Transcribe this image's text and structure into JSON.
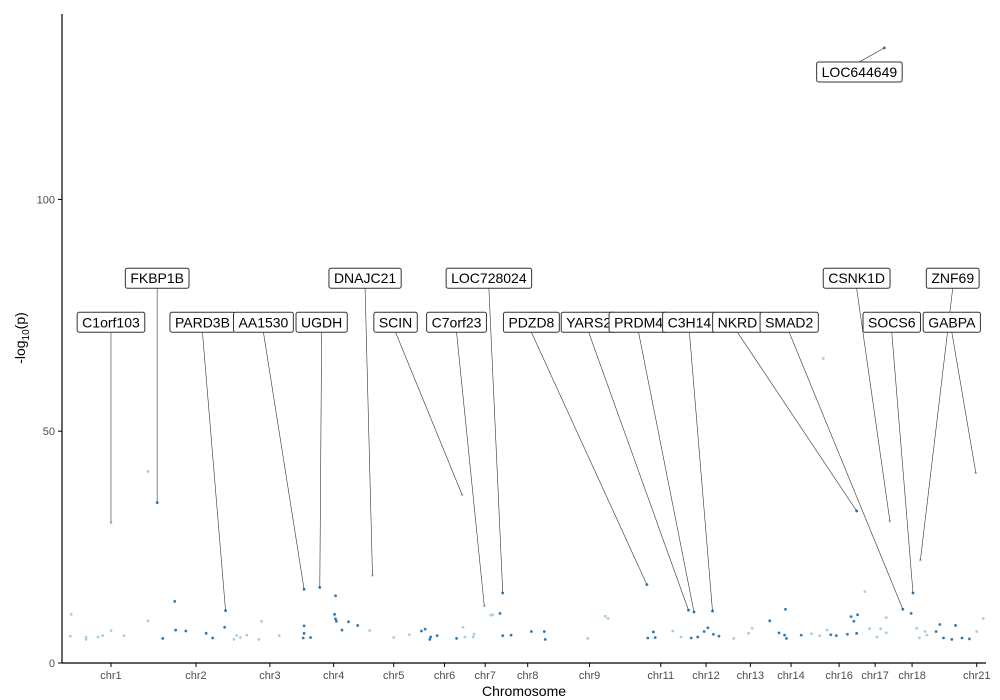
{
  "chart_data": {
    "type": "scatter",
    "title": "",
    "xlabel": "Chromosome",
    "ylabel": "-log10(p)",
    "ylim": [
      0,
      140
    ],
    "xlim": [
      0,
      100
    ],
    "y_ticks": [
      0,
      50,
      100
    ],
    "grid": false,
    "legend": "none",
    "chromosomes": [
      "chr1",
      "chr2",
      "chr3",
      "chr4",
      "chr5",
      "chr6",
      "chr7",
      "chr8",
      "chr9",
      "chr11",
      "chr12",
      "chr13",
      "chr14",
      "chr16",
      "chr17",
      "chr18",
      "chr21"
    ],
    "chromosome_centers": [
      5.3,
      14.5,
      22.5,
      29.4,
      35.9,
      41.4,
      45.8,
      50.4,
      57.1,
      64.8,
      69.7,
      74.5,
      78.9,
      84.1,
      88.0,
      92.0,
      99.0
    ],
    "colors": {
      "dark": "#2b7bba",
      "light": "#a6cee3",
      "axis": "#000000",
      "tick_text": "#4d4d4d"
    },
    "points": [
      {
        "x": 1.0,
        "y": 10.5,
        "c": "light"
      },
      {
        "x": 0.9,
        "y": 5.8,
        "c": "light"
      },
      {
        "x": 2.6,
        "y": 5.6,
        "c": "light"
      },
      {
        "x": 2.6,
        "y": 5.1,
        "c": "light"
      },
      {
        "x": 3.9,
        "y": 5.6,
        "c": "light"
      },
      {
        "x": 4.4,
        "y": 5.9,
        "c": "light"
      },
      {
        "x": 5.3,
        "y": 30.3,
        "c": "light"
      },
      {
        "x": 5.3,
        "y": 7.0,
        "c": "light"
      },
      {
        "x": 6.7,
        "y": 5.9,
        "c": "light"
      },
      {
        "x": 9.3,
        "y": 41.3,
        "c": "light"
      },
      {
        "x": 9.3,
        "y": 9.1,
        "c": "light"
      },
      {
        "x": 10.3,
        "y": 34.6,
        "c": "dark"
      },
      {
        "x": 10.9,
        "y": 5.3,
        "c": "dark"
      },
      {
        "x": 12.2,
        "y": 13.3,
        "c": "dark"
      },
      {
        "x": 12.3,
        "y": 7.1,
        "c": "dark"
      },
      {
        "x": 13.4,
        "y": 6.9,
        "c": "dark"
      },
      {
        "x": 15.6,
        "y": 6.4,
        "c": "dark"
      },
      {
        "x": 16.3,
        "y": 5.4,
        "c": "dark"
      },
      {
        "x": 17.7,
        "y": 11.3,
        "c": "dark"
      },
      {
        "x": 17.6,
        "y": 7.7,
        "c": "dark"
      },
      {
        "x": 18.6,
        "y": 5.1,
        "c": "light"
      },
      {
        "x": 18.9,
        "y": 5.9,
        "c": "light"
      },
      {
        "x": 19.3,
        "y": 5.5,
        "c": "light"
      },
      {
        "x": 20.0,
        "y": 6.0,
        "c": "light"
      },
      {
        "x": 21.3,
        "y": 5.1,
        "c": "light"
      },
      {
        "x": 21.6,
        "y": 9.0,
        "c": "light"
      },
      {
        "x": 23.5,
        "y": 5.9,
        "c": "light"
      },
      {
        "x": 26.2,
        "y": 15.9,
        "c": "dark"
      },
      {
        "x": 26.2,
        "y": 8.0,
        "c": "dark"
      },
      {
        "x": 26.2,
        "y": 6.4,
        "c": "dark"
      },
      {
        "x": 26.1,
        "y": 5.4,
        "c": "dark"
      },
      {
        "x": 26.9,
        "y": 5.5,
        "c": "dark"
      },
      {
        "x": 27.9,
        "y": 16.3,
        "c": "dark"
      },
      {
        "x": 29.6,
        "y": 14.5,
        "c": "dark"
      },
      {
        "x": 29.5,
        "y": 10.5,
        "c": "dark"
      },
      {
        "x": 29.6,
        "y": 9.5,
        "c": "dark"
      },
      {
        "x": 29.7,
        "y": 9.0,
        "c": "dark"
      },
      {
        "x": 30.3,
        "y": 7.1,
        "c": "dark"
      },
      {
        "x": 31.0,
        "y": 8.9,
        "c": "dark"
      },
      {
        "x": 32.0,
        "y": 8.1,
        "c": "dark"
      },
      {
        "x": 33.6,
        "y": 18.9,
        "c": "light"
      },
      {
        "x": 33.3,
        "y": 7.0,
        "c": "light"
      },
      {
        "x": 35.9,
        "y": 5.5,
        "c": "light"
      },
      {
        "x": 37.6,
        "y": 6.1,
        "c": "light"
      },
      {
        "x": 38.9,
        "y": 6.9,
        "c": "dark"
      },
      {
        "x": 39.3,
        "y": 7.3,
        "c": "dark"
      },
      {
        "x": 39.8,
        "y": 5.1,
        "c": "dark"
      },
      {
        "x": 39.9,
        "y": 5.6,
        "c": "dark"
      },
      {
        "x": 40.6,
        "y": 5.9,
        "c": "dark"
      },
      {
        "x": 42.7,
        "y": 5.3,
        "c": "dark"
      },
      {
        "x": 43.3,
        "y": 36.3,
        "c": "light"
      },
      {
        "x": 43.4,
        "y": 7.7,
        "c": "light"
      },
      {
        "x": 43.6,
        "y": 5.6,
        "c": "light"
      },
      {
        "x": 44.5,
        "y": 5.6,
        "c": "light"
      },
      {
        "x": 44.6,
        "y": 6.2,
        "c": "light"
      },
      {
        "x": 45.7,
        "y": 12.3,
        "c": "light"
      },
      {
        "x": 46.4,
        "y": 10.3,
        "c": "light"
      },
      {
        "x": 46.6,
        "y": 10.4,
        "c": "light"
      },
      {
        "x": 47.4,
        "y": 10.7,
        "c": "dark"
      },
      {
        "x": 47.7,
        "y": 15.1,
        "c": "dark"
      },
      {
        "x": 47.7,
        "y": 5.9,
        "c": "dark"
      },
      {
        "x": 48.6,
        "y": 6.0,
        "c": "dark"
      },
      {
        "x": 50.8,
        "y": 6.8,
        "c": "dark"
      },
      {
        "x": 52.2,
        "y": 6.8,
        "c": "dark"
      },
      {
        "x": 52.3,
        "y": 5.1,
        "c": "dark"
      },
      {
        "x": 56.9,
        "y": 5.3,
        "c": "light"
      },
      {
        "x": 58.8,
        "y": 10.1,
        "c": "light"
      },
      {
        "x": 59.1,
        "y": 9.6,
        "c": "light"
      },
      {
        "x": 63.3,
        "y": 16.9,
        "c": "dark"
      },
      {
        "x": 63.4,
        "y": 5.4,
        "c": "dark"
      },
      {
        "x": 64.0,
        "y": 6.7,
        "c": "dark"
      },
      {
        "x": 64.2,
        "y": 5.5,
        "c": "dark"
      },
      {
        "x": 66.1,
        "y": 6.9,
        "c": "light"
      },
      {
        "x": 67.0,
        "y": 5.6,
        "c": "light"
      },
      {
        "x": 67.8,
        "y": 11.4,
        "c": "dark"
      },
      {
        "x": 68.4,
        "y": 11.0,
        "c": "dark"
      },
      {
        "x": 68.1,
        "y": 5.4,
        "c": "dark"
      },
      {
        "x": 68.8,
        "y": 5.6,
        "c": "dark"
      },
      {
        "x": 69.5,
        "y": 6.8,
        "c": "dark"
      },
      {
        "x": 69.9,
        "y": 7.6,
        "c": "dark"
      },
      {
        "x": 70.4,
        "y": 11.2,
        "c": "dark"
      },
      {
        "x": 70.5,
        "y": 6.2,
        "c": "dark"
      },
      {
        "x": 71.1,
        "y": 5.8,
        "c": "dark"
      },
      {
        "x": 72.7,
        "y": 5.3,
        "c": "light"
      },
      {
        "x": 74.3,
        "y": 6.4,
        "c": "light"
      },
      {
        "x": 74.7,
        "y": 7.5,
        "c": "light"
      },
      {
        "x": 76.6,
        "y": 9.1,
        "c": "dark"
      },
      {
        "x": 77.6,
        "y": 6.5,
        "c": "dark"
      },
      {
        "x": 78.3,
        "y": 11.6,
        "c": "dark"
      },
      {
        "x": 78.2,
        "y": 6.0,
        "c": "dark"
      },
      {
        "x": 78.4,
        "y": 5.3,
        "c": "dark"
      },
      {
        "x": 80.0,
        "y": 6.0,
        "c": "dark"
      },
      {
        "x": 81.1,
        "y": 6.3,
        "c": "light"
      },
      {
        "x": 82.0,
        "y": 5.9,
        "c": "light"
      },
      {
        "x": 82.4,
        "y": 65.7,
        "c": "light"
      },
      {
        "x": 82.8,
        "y": 7.1,
        "c": "light"
      },
      {
        "x": 83.2,
        "y": 6.1,
        "c": "dark"
      },
      {
        "x": 83.8,
        "y": 5.9,
        "c": "dark"
      },
      {
        "x": 85.0,
        "y": 6.2,
        "c": "dark"
      },
      {
        "x": 85.4,
        "y": 10.0,
        "c": "dark"
      },
      {
        "x": 85.7,
        "y": 9.0,
        "c": "dark"
      },
      {
        "x": 86.0,
        "y": 32.8,
        "c": "dark"
      },
      {
        "x": 86.0,
        "y": 6.4,
        "c": "dark"
      },
      {
        "x": 86.1,
        "y": 10.4,
        "c": "dark"
      },
      {
        "x": 86.9,
        "y": 15.4,
        "c": "light"
      },
      {
        "x": 87.4,
        "y": 7.4,
        "c": "light"
      },
      {
        "x": 88.2,
        "y": 5.6,
        "c": "light"
      },
      {
        "x": 88.6,
        "y": 7.4,
        "c": "light"
      },
      {
        "x": 89.2,
        "y": 9.8,
        "c": "light"
      },
      {
        "x": 89.2,
        "y": 6.5,
        "c": "light"
      },
      {
        "x": 89.6,
        "y": 30.6,
        "c": "light"
      },
      {
        "x": 91.0,
        "y": 11.6,
        "c": "dark"
      },
      {
        "x": 91.9,
        "y": 10.7,
        "c": "dark"
      },
      {
        "x": 92.1,
        "y": 15.1,
        "c": "dark"
      },
      {
        "x": 92.5,
        "y": 7.5,
        "c": "light"
      },
      {
        "x": 92.8,
        "y": 5.4,
        "c": "light"
      },
      {
        "x": 92.9,
        "y": 22.2,
        "c": "light"
      },
      {
        "x": 93.4,
        "y": 6.8,
        "c": "light"
      },
      {
        "x": 93.6,
        "y": 6.0,
        "c": "light"
      },
      {
        "x": 94.6,
        "y": 6.8,
        "c": "dark"
      },
      {
        "x": 95.0,
        "y": 8.3,
        "c": "dark"
      },
      {
        "x": 95.4,
        "y": 5.4,
        "c": "dark"
      },
      {
        "x": 96.3,
        "y": 5.1,
        "c": "dark"
      },
      {
        "x": 96.7,
        "y": 8.1,
        "c": "dark"
      },
      {
        "x": 97.4,
        "y": 5.4,
        "c": "dark"
      },
      {
        "x": 98.2,
        "y": 5.2,
        "c": "dark"
      },
      {
        "x": 98.9,
        "y": 41.0,
        "c": "light"
      },
      {
        "x": 99.0,
        "y": 6.8,
        "c": "light"
      },
      {
        "x": 99.7,
        "y": 9.6,
        "c": "light"
      },
      {
        "x": 89.0,
        "y": 132.7,
        "c": "dark"
      }
    ],
    "annotations": [
      {
        "label": "LOC644649",
        "point": [
          89.0,
          132.7
        ],
        "label_pos": [
          86.3,
          127.5
        ]
      },
      {
        "label": "C1orf103",
        "point": [
          5.3,
          30.3
        ],
        "label_pos": [
          5.3,
          73.5
        ]
      },
      {
        "label": "FKBP1B",
        "point": [
          10.3,
          34.6
        ],
        "label_pos": [
          10.3,
          83.0
        ]
      },
      {
        "label": "PARD3B",
        "point": [
          17.7,
          11.3
        ],
        "label_pos": [
          15.2,
          73.5
        ]
      },
      {
        "label": "AA1530",
        "point": [
          26.2,
          15.9
        ],
        "label_pos": [
          21.8,
          73.5
        ]
      },
      {
        "label": "UGDH",
        "point": [
          27.9,
          16.3
        ],
        "label_pos": [
          28.1,
          73.5
        ]
      },
      {
        "label": "DNAJC21",
        "point": [
          33.6,
          18.9
        ],
        "label_pos": [
          32.8,
          83.0
        ]
      },
      {
        "label": "SCIN",
        "point": [
          43.3,
          36.3
        ],
        "label_pos": [
          36.1,
          73.5
        ]
      },
      {
        "label": "C7orf23",
        "point": [
          45.7,
          12.3
        ],
        "label_pos": [
          42.7,
          73.5
        ]
      },
      {
        "label": "LOC728024",
        "point": [
          47.7,
          15.1
        ],
        "label_pos": [
          46.2,
          83.0
        ]
      },
      {
        "label": "PDZD8",
        "point": [
          63.3,
          16.9
        ],
        "label_pos": [
          50.8,
          73.5
        ]
      },
      {
        "label": "YARS2",
        "point": [
          67.8,
          11.4
        ],
        "label_pos": [
          57.0,
          73.5
        ]
      },
      {
        "label": "PRDM4",
        "point": [
          68.4,
          11.0
        ],
        "label_pos": [
          62.4,
          73.5
        ]
      },
      {
        "label": "C3H14",
        "point": [
          70.4,
          11.2
        ],
        "label_pos": [
          67.9,
          73.5
        ]
      },
      {
        "label": "NKRD",
        "point": [
          86.0,
          32.8
        ],
        "label_pos": [
          73.1,
          73.5
        ]
      },
      {
        "label": "SMAD2",
        "point": [
          91.0,
          11.6
        ],
        "label_pos": [
          78.7,
          73.5
        ]
      },
      {
        "label": "CSNK1D",
        "point": [
          89.6,
          30.6
        ],
        "label_pos": [
          86.0,
          83.0
        ]
      },
      {
        "label": "SOCS6",
        "point": [
          92.1,
          15.1
        ],
        "label_pos": [
          89.8,
          73.5
        ]
      },
      {
        "label": "ZNF69",
        "point": [
          92.9,
          22.2
        ],
        "label_pos": [
          96.4,
          83.0
        ]
      },
      {
        "label": "GABPA",
        "point": [
          98.9,
          41.0
        ],
        "label_pos": [
          96.3,
          73.5
        ]
      }
    ]
  }
}
